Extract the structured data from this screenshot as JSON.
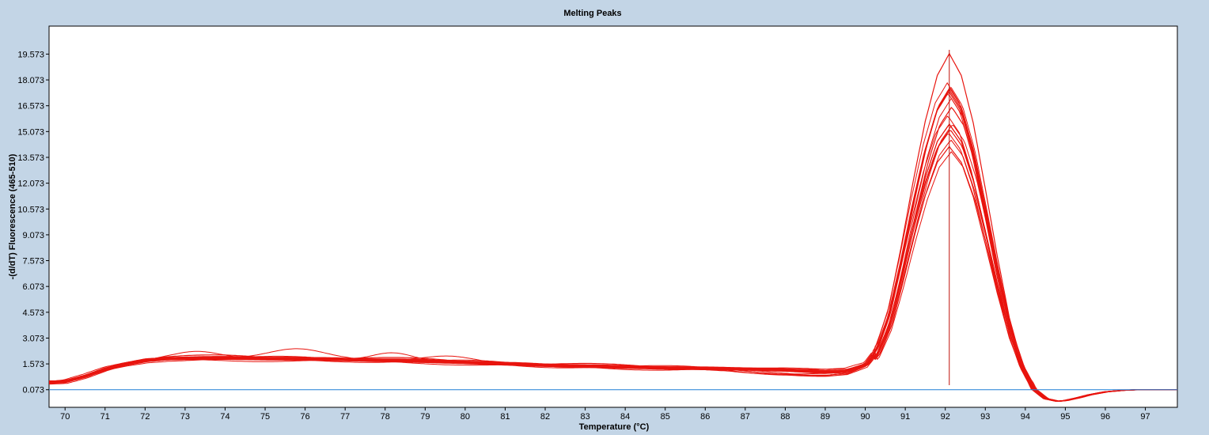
{
  "chart_data": {
    "type": "line",
    "title": "Melting Peaks",
    "xlabel": "Temperature (°C)",
    "ylabel": "-(d/dT) Fluorescence (465-510)",
    "xlim": [
      69.6,
      97.8
    ],
    "ylim": [
      -0.95,
      21.2
    ],
    "x_ticks": [
      "70",
      "71",
      "72",
      "73",
      "74",
      "75",
      "76",
      "77",
      "78",
      "79",
      "80",
      "81",
      "82",
      "83",
      "84",
      "85",
      "86",
      "87",
      "88",
      "89",
      "90",
      "91",
      "92",
      "93",
      "94",
      "95",
      "96",
      "97"
    ],
    "y_ticks": [
      "0.073",
      "1.573",
      "3.073",
      "4.573",
      "6.073",
      "7.573",
      "9.073",
      "10.573",
      "12.073",
      "13.573",
      "15.073",
      "16.573",
      "18.073",
      "19.573"
    ],
    "grid": false,
    "series_color": "#e8140e",
    "baseline_color": "#1e7fd6",
    "cursor_x": 92.1,
    "baseline": {
      "y": 0.073,
      "x_range": [
        69.6,
        97.8
      ]
    },
    "curve_template": {
      "x": [
        69.6,
        70.0,
        70.5,
        71.0,
        71.5,
        72.0,
        72.5,
        73.0,
        74.0,
        75.0,
        76.0,
        77.0,
        78.0,
        79.0,
        80.0,
        81.0,
        82.0,
        83.0,
        84.0,
        85.0,
        86.0,
        87.0,
        88.0,
        88.5,
        89.0,
        89.5,
        90.0,
        90.3,
        90.6,
        90.9,
        91.2,
        91.5,
        91.8,
        92.1,
        92.4,
        92.7,
        93.0,
        93.3,
        93.6,
        93.9,
        94.2,
        94.5,
        94.8,
        95.0,
        95.3,
        95.6,
        96.0,
        96.5,
        97.0,
        97.8
      ],
      "y": [
        0.5,
        0.55,
        0.85,
        1.25,
        1.55,
        1.78,
        1.88,
        1.9,
        1.9,
        1.87,
        1.85,
        1.83,
        1.78,
        1.72,
        1.65,
        1.57,
        1.5,
        1.44,
        1.38,
        1.33,
        1.3,
        1.27,
        1.23,
        1.18,
        1.12,
        1.15,
        1.5,
        2.4,
        4.3,
        7.3,
        10.6,
        13.6,
        15.9,
        17.0,
        15.9,
        13.5,
        10.2,
        6.8,
        3.7,
        1.5,
        0.1,
        -0.45,
        -0.6,
        -0.55,
        -0.4,
        -0.22,
        -0.05,
        0.05,
        0.08,
        0.07
      ]
    },
    "series": [
      {
        "peak": 19.6,
        "base": 1.05,
        "wiggle": 0.1,
        "shift": 0.0,
        "dip": 0.25
      },
      {
        "peak": 17.9,
        "base": 1.0,
        "wiggle": 0.05,
        "shift": -0.05,
        "dip": 0.1
      },
      {
        "peak": 17.7,
        "base": 0.98,
        "wiggle": -0.05,
        "shift": 0.03,
        "dip": 0.3
      },
      {
        "peak": 17.5,
        "base": 1.0,
        "wiggle": 0.0,
        "shift": 0.0,
        "dip": 0.05
      },
      {
        "peak": 17.3,
        "base": 1.02,
        "wiggle": 0.12,
        "shift": -0.03,
        "dip": -0.1
      },
      {
        "peak": 17.0,
        "base": 0.95,
        "wiggle": -0.08,
        "shift": 0.05,
        "dip": 0.15
      },
      {
        "peak": 16.5,
        "base": 1.03,
        "wiggle": 0.05,
        "shift": 0.06,
        "dip": 0.35
      },
      {
        "peak": 16.0,
        "base": 1.0,
        "wiggle": 0.0,
        "shift": -0.04,
        "dip": 0.0
      },
      {
        "peak": 15.5,
        "base": 0.97,
        "wiggle": -0.1,
        "shift": 0.08,
        "dip": 0.2
      },
      {
        "peak": 15.2,
        "base": 1.01,
        "wiggle": 0.08,
        "shift": 0.02,
        "dip": -0.05
      },
      {
        "peak": 15.0,
        "base": 1.04,
        "wiggle": 0.03,
        "shift": -0.02,
        "dip": 0.1
      },
      {
        "peak": 14.6,
        "base": 0.99,
        "wiggle": -0.03,
        "shift": 0.04,
        "dip": 0.3
      },
      {
        "peak": 14.2,
        "base": 1.0,
        "wiggle": 0.06,
        "shift": 0.0,
        "dip": 0.05
      },
      {
        "peak": 13.9,
        "base": 1.02,
        "wiggle": -0.06,
        "shift": 0.05,
        "dip": -0.15
      },
      {
        "peak": 17.6,
        "base": 1.0,
        "wiggle": 0.02,
        "shift": 0.01,
        "dip": 0.0
      },
      {
        "peak": 17.4,
        "base": 0.99,
        "wiggle": 0.0,
        "shift": -0.01,
        "dip": 0.05
      }
    ],
    "bump_series": [
      {
        "center": 75.8,
        "height": 0.6,
        "width": 1.0
      },
      {
        "center": 73.3,
        "height": 0.4,
        "width": 0.8
      },
      {
        "center": 78.2,
        "height": 0.45,
        "width": 0.7
      },
      {
        "center": 79.6,
        "height": 0.35,
        "width": 0.9
      }
    ]
  }
}
